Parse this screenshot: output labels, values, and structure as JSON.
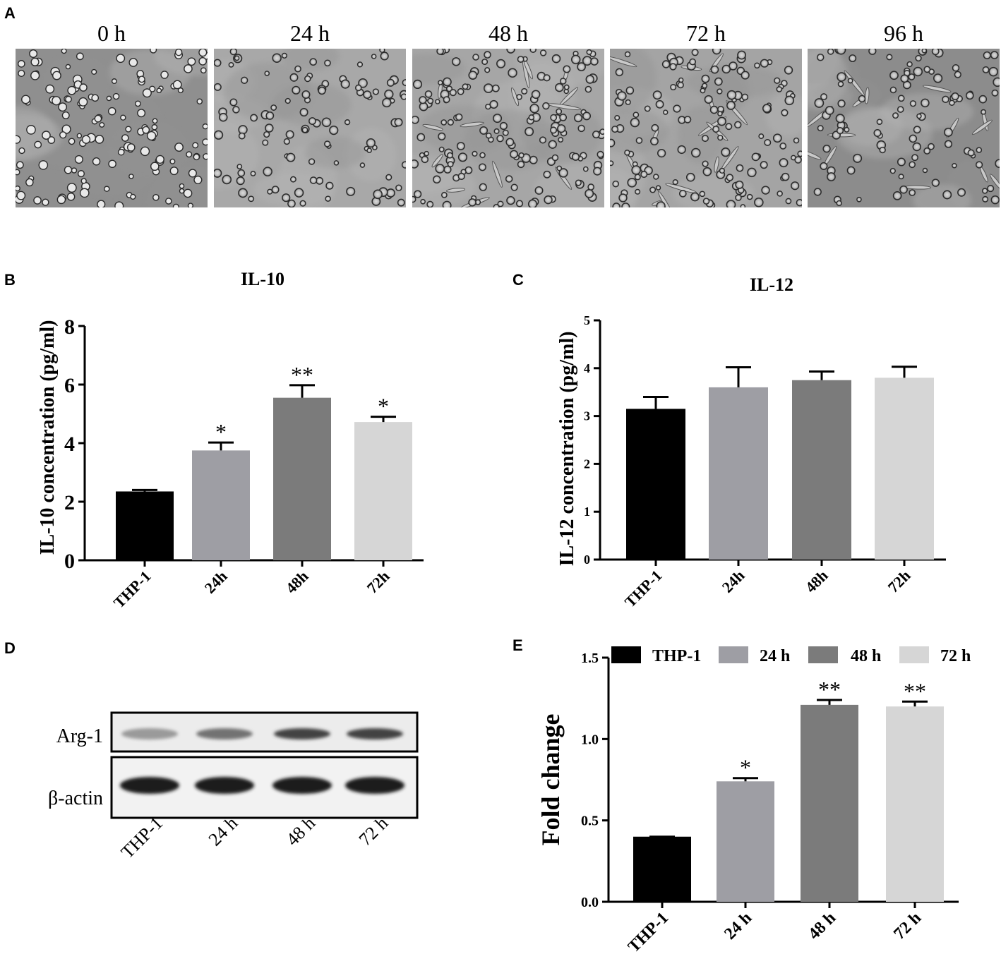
{
  "panels": {
    "a": {
      "letter": "A",
      "times": [
        "0 h",
        "24 h",
        "48 h",
        "72 h",
        "96 h"
      ]
    },
    "b": {
      "letter": "B"
    },
    "c": {
      "letter": "C"
    },
    "d": {
      "letter": "D",
      "row_labels": [
        "Arg-1",
        "β-actin"
      ],
      "lanes": [
        "THP-1",
        "24 h",
        "48 h",
        "72 h"
      ],
      "arg1_band_intensity": [
        0.35,
        0.6,
        0.9,
        0.9
      ]
    },
    "e": {
      "letter": "E"
    }
  },
  "colors": {
    "THP-1": "#000000",
    "24h": "#9e9ea4",
    "48h": "#7b7b7b",
    "72h": "#d6d6d6"
  },
  "chart_data": [
    {
      "id": "b",
      "type": "bar",
      "title": "IL-10",
      "ylabel": "IL-10 concentration (pg/ml)",
      "categories": [
        "THP-1",
        "24h",
        "48h",
        "72h"
      ],
      "values": [
        2.35,
        3.75,
        5.55,
        4.72
      ],
      "errors": [
        0.05,
        0.27,
        0.43,
        0.18
      ],
      "significance": [
        "",
        "*",
        "**",
        "*"
      ],
      "ylim": [
        0,
        8
      ],
      "yticks": [
        "0",
        "2",
        "4",
        "6",
        "8"
      ]
    },
    {
      "id": "c",
      "type": "bar",
      "title": "IL-12",
      "ylabel": "IL-12 concentration (pg/ml)",
      "categories": [
        "THP-1",
        "24h",
        "48h",
        "72h"
      ],
      "values": [
        3.15,
        3.6,
        3.75,
        3.8
      ],
      "errors": [
        0.25,
        0.42,
        0.18,
        0.23
      ],
      "significance": [
        "",
        "",
        "",
        ""
      ],
      "ylim": [
        0,
        5
      ],
      "yticks": [
        "0",
        "1",
        "2",
        "3",
        "4",
        "5"
      ]
    },
    {
      "id": "e",
      "type": "bar",
      "title": "",
      "ylabel": "Fold change",
      "categories": [
        "THP-1",
        "24 h",
        "48 h",
        "72 h"
      ],
      "values": [
        0.4,
        0.74,
        1.21,
        1.2
      ],
      "errors": [
        0.0,
        0.02,
        0.03,
        0.03
      ],
      "significance": [
        "",
        "*",
        "**",
        "**"
      ],
      "legend": [
        "THP-1",
        "24 h",
        "48 h",
        "72 h"
      ],
      "legend_position": "top",
      "ylim": [
        0,
        1.5
      ],
      "yticks": [
        "0.0",
        "0.5",
        "1.0",
        "1.5"
      ]
    }
  ]
}
